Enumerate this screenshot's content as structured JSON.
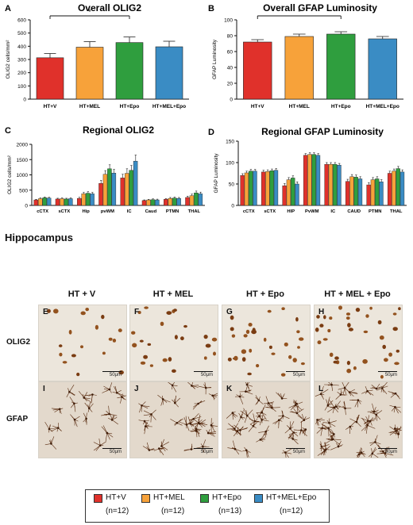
{
  "colors": {
    "HT+V": "#e0312b",
    "HT+MEL": "#f7a23a",
    "HT+Epo": "#2f9e3e",
    "HT+MEL+Epo": "#3a8cc4"
  },
  "chart_data": [
    {
      "panel": "A",
      "type": "bar",
      "title": "Overall OLIG2",
      "categories": [
        "HT+V",
        "HT+MEL",
        "HT+Epo",
        "HT+MEL+Epo"
      ],
      "values": [
        313,
        393,
        428,
        396
      ],
      "errors": [
        32,
        42,
        42,
        42
      ],
      "ylabel": "OLIG2 cells/mm²",
      "ylim": [
        0,
        600
      ],
      "yticks": [
        0,
        100,
        200,
        300,
        400,
        500,
        600
      ],
      "significance": [
        {
          "from": 0,
          "to": 2,
          "label": "*"
        }
      ]
    },
    {
      "panel": "B",
      "type": "bar",
      "title": "Overall GFAP Luminosity",
      "categories": [
        "HT+V",
        "HT+MEL",
        "HT+Epo",
        "HT+MEL+Epo"
      ],
      "values": [
        72,
        79,
        82,
        76
      ],
      "errors": [
        3,
        3,
        3,
        3
      ],
      "ylabel": "GFAP Luminosity",
      "ylim": [
        0,
        100
      ],
      "yticks": [
        0,
        20,
        40,
        60,
        80,
        100
      ],
      "significance": [
        {
          "from": 0,
          "to": 2,
          "label": "*"
        }
      ]
    },
    {
      "panel": "C",
      "type": "bar",
      "title": "Regional OLIG2",
      "categories": [
        "cCTX",
        "sCTX",
        "Hip",
        "pvWM",
        "IC",
        "Caud",
        "PTMN",
        "THAL"
      ],
      "series": [
        {
          "name": "HT+V",
          "values": [
            180,
            210,
            230,
            720,
            900,
            160,
            200,
            260
          ],
          "errors": [
            20,
            25,
            35,
            100,
            120,
            20,
            25,
            40
          ]
        },
        {
          "name": "HT+MEL",
          "values": [
            220,
            220,
            380,
            1020,
            1050,
            180,
            230,
            320
          ],
          "errors": [
            25,
            25,
            45,
            120,
            150,
            20,
            30,
            50
          ]
        },
        {
          "name": "HT+Epo",
          "values": [
            250,
            210,
            400,
            1200,
            1150,
            190,
            240,
            410
          ],
          "errors": [
            25,
            25,
            50,
            130,
            160,
            25,
            30,
            60
          ]
        },
        {
          "name": "HT+MEL+Epo",
          "values": [
            240,
            220,
            380,
            1060,
            1450,
            180,
            230,
            380
          ],
          "errors": [
            25,
            25,
            45,
            120,
            200,
            25,
            30,
            55
          ]
        }
      ],
      "ylabel": "OLIG2 cells/mm²",
      "ylim": [
        0,
        2000
      ],
      "yticks": [
        0,
        500,
        1000,
        1500,
        2000
      ]
    },
    {
      "panel": "D",
      "type": "bar",
      "title": "Regional GFAP Luminosity",
      "categories": [
        "cCTX",
        "sCTX",
        "HIP",
        "PvWM",
        "IC",
        "CAUD",
        "PTMN",
        "THAL"
      ],
      "series": [
        {
          "name": "HT+V",
          "values": [
            70,
            78,
            46,
            117,
            96,
            56,
            48,
            75
          ],
          "errors": [
            4,
            4,
            5,
            4,
            4,
            5,
            5,
            5
          ]
        },
        {
          "name": "HT+MEL",
          "values": [
            76,
            79,
            60,
            119,
            96,
            67,
            60,
            80
          ],
          "errors": [
            4,
            4,
            5,
            4,
            4,
            5,
            5,
            5
          ]
        },
        {
          "name": "HT+Epo",
          "values": [
            80,
            81,
            64,
            119,
            96,
            66,
            62,
            86
          ],
          "errors": [
            4,
            4,
            5,
            4,
            4,
            5,
            5,
            5
          ]
        },
        {
          "name": "HT+MEL+Epo",
          "values": [
            80,
            82,
            50,
            117,
            94,
            62,
            55,
            78
          ],
          "errors": [
            4,
            4,
            5,
            4,
            4,
            5,
            5,
            5
          ]
        }
      ],
      "ylabel": "GFAP Luminosity",
      "ylim": [
        0,
        150
      ],
      "yticks": [
        0,
        50,
        100,
        150
      ]
    }
  ],
  "micro": {
    "section_title": "Hippocampus",
    "groups": [
      "HT + V",
      "HT + MEL",
      "HT + Epo",
      "HT + MEL + Epo"
    ],
    "rows": [
      "OLIG2",
      "GFAP"
    ],
    "letters": [
      [
        "E",
        "F",
        "G",
        "H"
      ],
      [
        "I",
        "J",
        "K",
        "L"
      ]
    ],
    "scale": "50μm"
  },
  "legend": {
    "items": [
      {
        "label": "HT+V",
        "n": "(n=12)"
      },
      {
        "label": "HT+MEL",
        "n": "(n=12)"
      },
      {
        "label": "HT+Epo",
        "n": "(n=13)"
      },
      {
        "label": "HT+MEL+Epo",
        "n": "(n=12)"
      }
    ]
  }
}
